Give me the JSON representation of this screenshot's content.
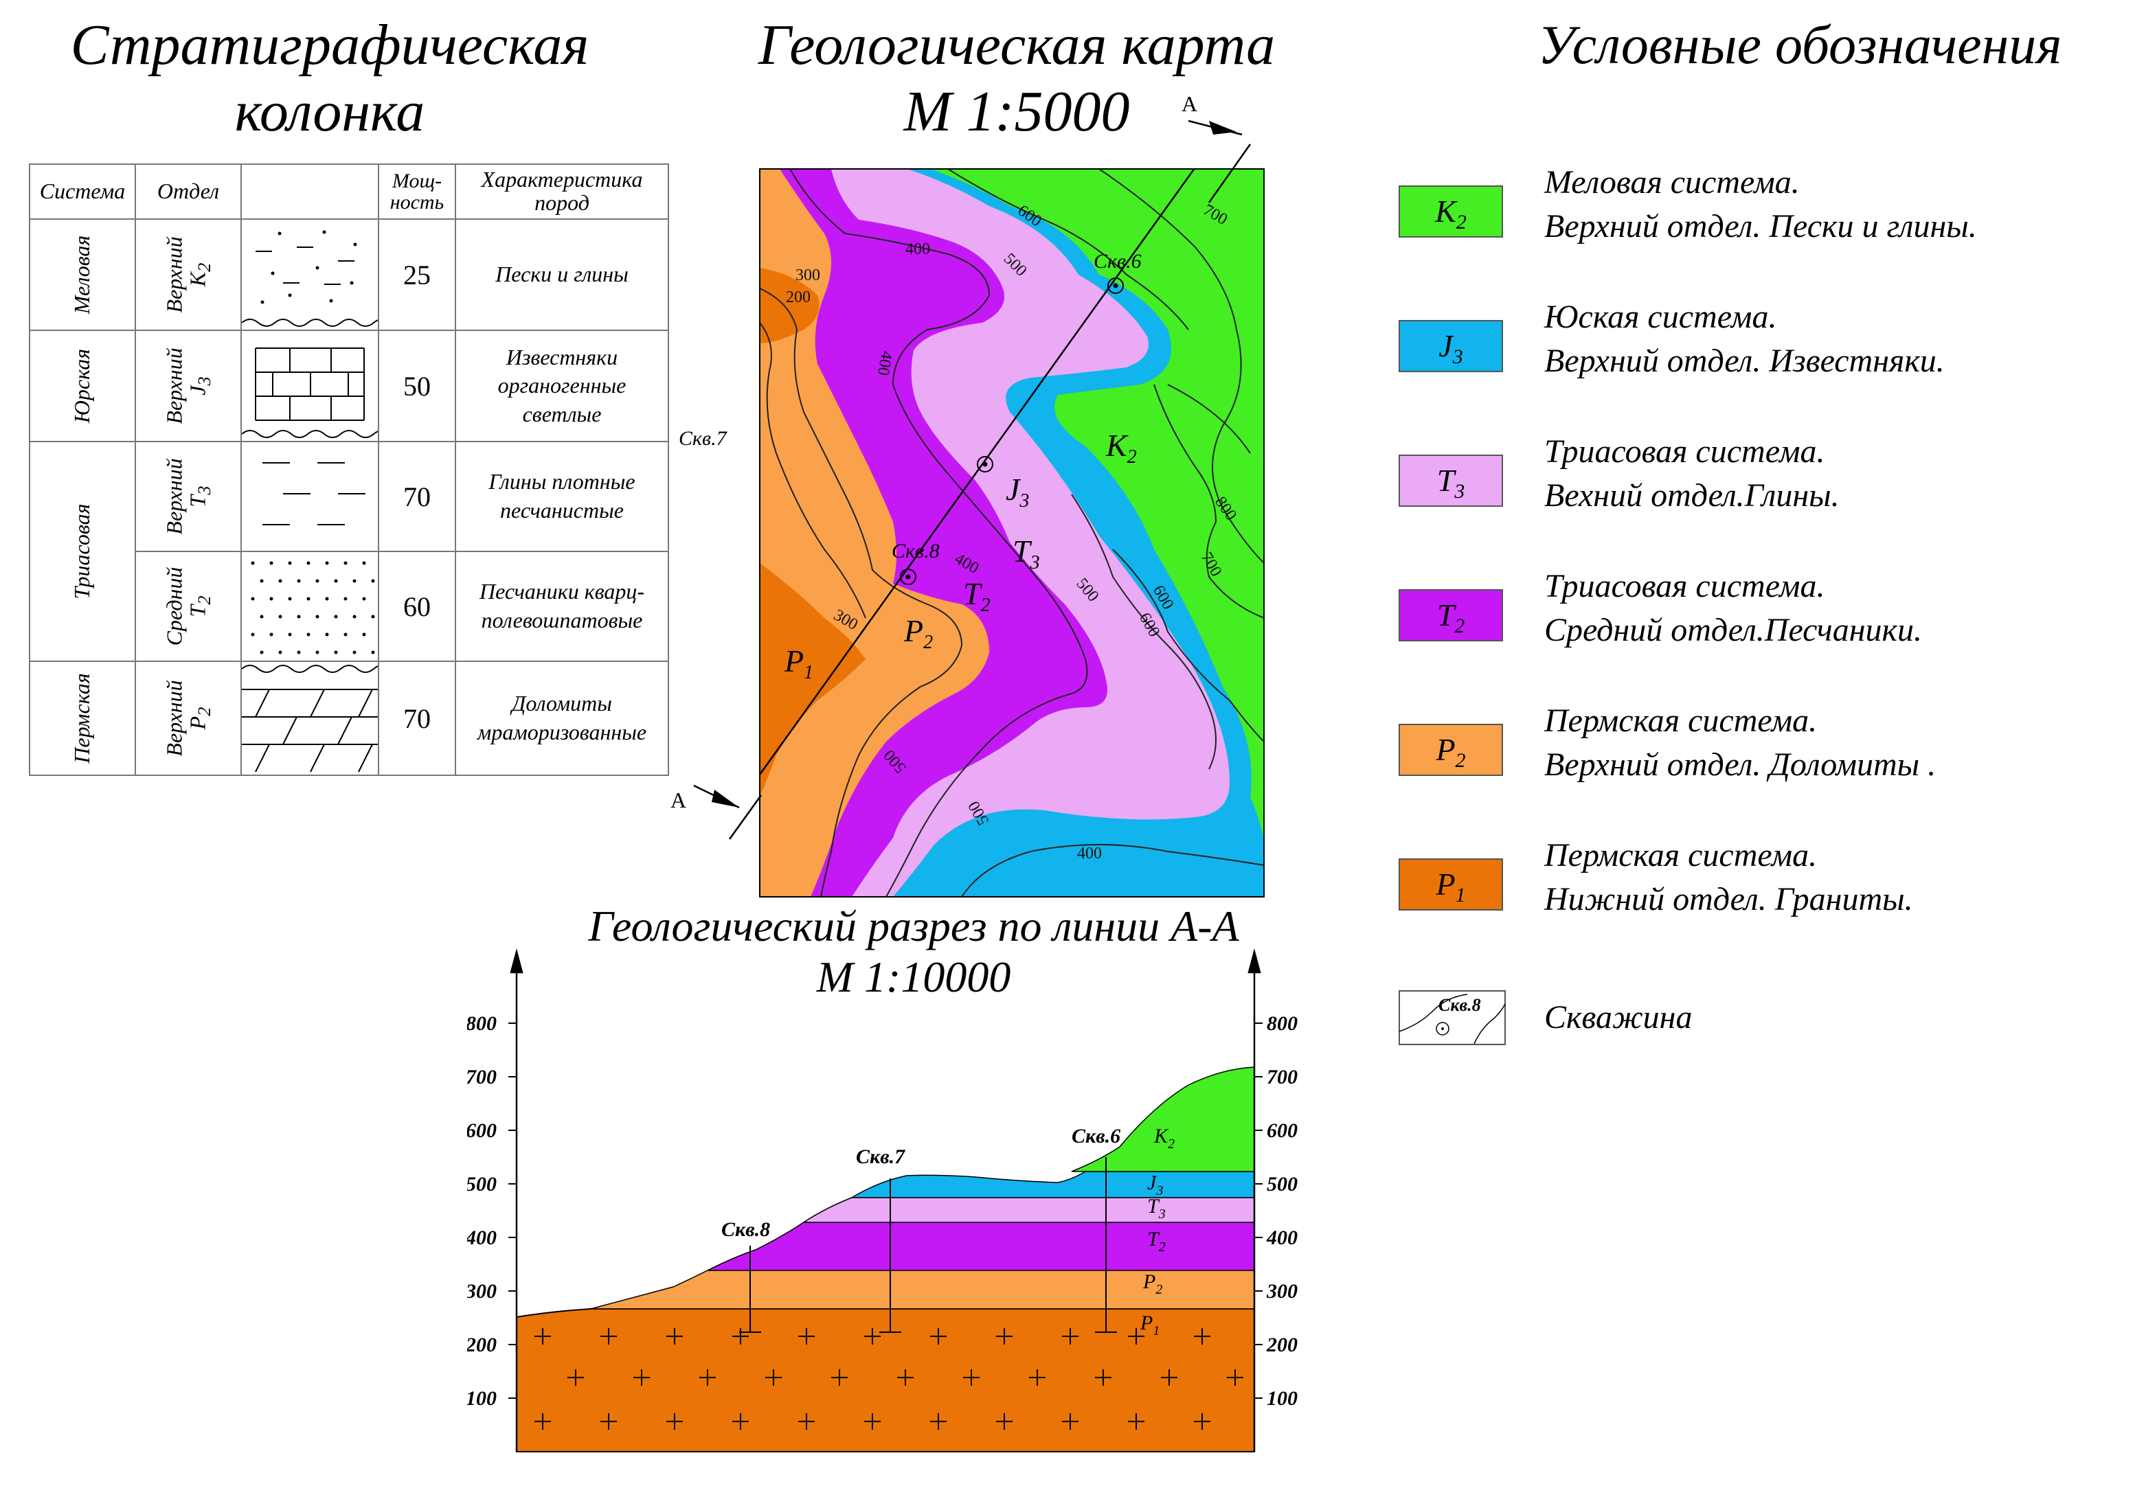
{
  "titles": {
    "strat_line1": "Стратиграфическая",
    "strat_line2": "колонка",
    "map_line1": "Геологическая карта",
    "map_line2": "М 1:5000",
    "legend": "Условные обозначения",
    "section_line1": "Геологический разрез по линии А-А",
    "section_line2": "М 1:10000"
  },
  "strat_table": {
    "headers": {
      "system": "Система",
      "division": "Отдел",
      "thickness": "Мощ-\nность",
      "characteristic": "Характеристика\nпород"
    },
    "systems": {
      "cretaceous": "Меловая",
      "jurassic": "Юрская",
      "triassic": "Триасовая",
      "permian": "Пермская"
    },
    "rows": [
      {
        "division": "Верхний",
        "index": "K",
        "sub": "2",
        "thickness": "25",
        "description": "Пески и глины",
        "pattern": "sand"
      },
      {
        "division": "Верхний",
        "index": "J",
        "sub": "3",
        "thickness": "50",
        "description": "Известняки\nорганогенные\nсветлые",
        "pattern": "limestone"
      },
      {
        "division": "Верхний",
        "index": "T",
        "sub": "3",
        "thickness": "70",
        "description": "Глины плотные\nпесчанистые",
        "pattern": "clay"
      },
      {
        "division": "Средний",
        "index": "T",
        "sub": "2",
        "thickness": "60",
        "description": "Песчаники кварц-\nполевошпатовые",
        "pattern": "sandstone"
      },
      {
        "division": "Верхний",
        "index": "P",
        "sub": "2",
        "thickness": "70",
        "description": "Доломиты\nмраморизованные",
        "pattern": "dolomite"
      }
    ]
  },
  "map": {
    "section_letter": "А",
    "wells": [
      "Скв.6",
      "Скв.7",
      "Скв.8"
    ],
    "unit_labels": [
      "K",
      "2",
      "J",
      "3",
      "T",
      "3",
      "T",
      "2",
      "P",
      "2",
      "P",
      "1"
    ],
    "contour_labels": [
      "200",
      "300",
      "400",
      "500",
      "600",
      "700",
      "800",
      "400",
      "300",
      "400",
      "500",
      "600",
      "700",
      "600",
      "500",
      "400",
      "500",
      "600",
      "300",
      "400"
    ]
  },
  "section": {
    "axis_ticks": [
      "800",
      "700",
      "600",
      "500",
      "400",
      "300",
      "200",
      "100"
    ],
    "wells": [
      "Скв.8",
      "Скв.7",
      "Скв.6"
    ],
    "layer_labels": [
      {
        "index": "K",
        "sub": "2"
      },
      {
        "index": "J",
        "sub": "3"
      },
      {
        "index": "T",
        "sub": "3"
      },
      {
        "index": "T",
        "sub": "2"
      },
      {
        "index": "P",
        "sub": "2"
      },
      {
        "index": "P",
        "sub": "1"
      }
    ]
  },
  "legend": {
    "items": [
      {
        "index": "K",
        "sub": "2",
        "color": "#44ee22",
        "line1": "Меловая система.",
        "line2": "Верхний отдел. Пески и глины."
      },
      {
        "index": "J",
        "sub": "3",
        "color": "#11b4ec",
        "line1": "Юская система.",
        "line2": "Верхний отдел. Известняки."
      },
      {
        "index": "T",
        "sub": "3",
        "color": "#eaaaf6",
        "line1": "Триасовая система.",
        "line2": "Вехний отдел.Глины."
      },
      {
        "index": "T",
        "sub": "2",
        "color": "#c419f5",
        "line1": "Триасовая система.",
        "line2": "Средний отдел.Песчаники."
      },
      {
        "index": "P",
        "sub": "2",
        "color": "#f9a24b",
        "line1": "Пермская система.",
        "line2": "Верхний отдел. Доломиты ."
      },
      {
        "index": "P",
        "sub": "1",
        "color": "#ea7407",
        "line1": "Пермская система.",
        "line2": "Нижний отдел. Граниты."
      }
    ],
    "well_label": "Скважина",
    "well_sample": "Скв.8"
  },
  "colors": {
    "K2": "#44ee22",
    "J3": "#11b4ec",
    "T3": "#eaaaf6",
    "T2": "#c419f5",
    "P2": "#f9a24b",
    "P1": "#ea7407"
  }
}
